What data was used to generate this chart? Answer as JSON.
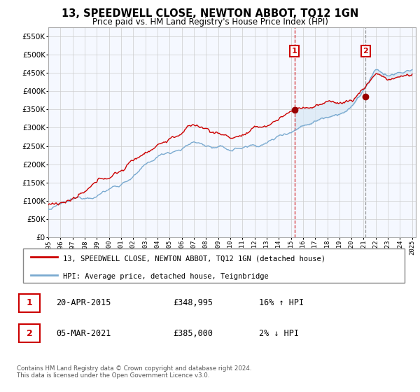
{
  "title": "13, SPEEDWELL CLOSE, NEWTON ABBOT, TQ12 1GN",
  "subtitle": "Price paid vs. HM Land Registry's House Price Index (HPI)",
  "ylim": [
    0,
    575000
  ],
  "yticks": [
    0,
    50000,
    100000,
    150000,
    200000,
    250000,
    300000,
    350000,
    400000,
    450000,
    500000,
    550000
  ],
  "x_start_year": 1995,
  "x_end_year": 2025,
  "sale1_year": 2015.29,
  "sale1_price": 348995,
  "sale1_hpi_text": "16% ↑ HPI",
  "sale2_year": 2021.17,
  "sale2_price": 385000,
  "sale2_hpi_text": "2% ↓ HPI",
  "sale1_date": "20-APR-2015",
  "sale2_date": "05-MAR-2021",
  "legend_line1": "13, SPEEDWELL CLOSE, NEWTON ABBOT, TQ12 1GN (detached house)",
  "legend_line2": "HPI: Average price, detached house, Teignbridge",
  "footer": "Contains HM Land Registry data © Crown copyright and database right 2024.\nThis data is licensed under the Open Government Licence v3.0.",
  "line_color_red": "#cc0000",
  "line_color_blue": "#7aaad0",
  "shade_color": "#d8e8f5",
  "background_color": "#ffffff",
  "plot_bg_color": "#f5f8ff",
  "grid_color": "#cccccc",
  "box_color": "#cc0000"
}
